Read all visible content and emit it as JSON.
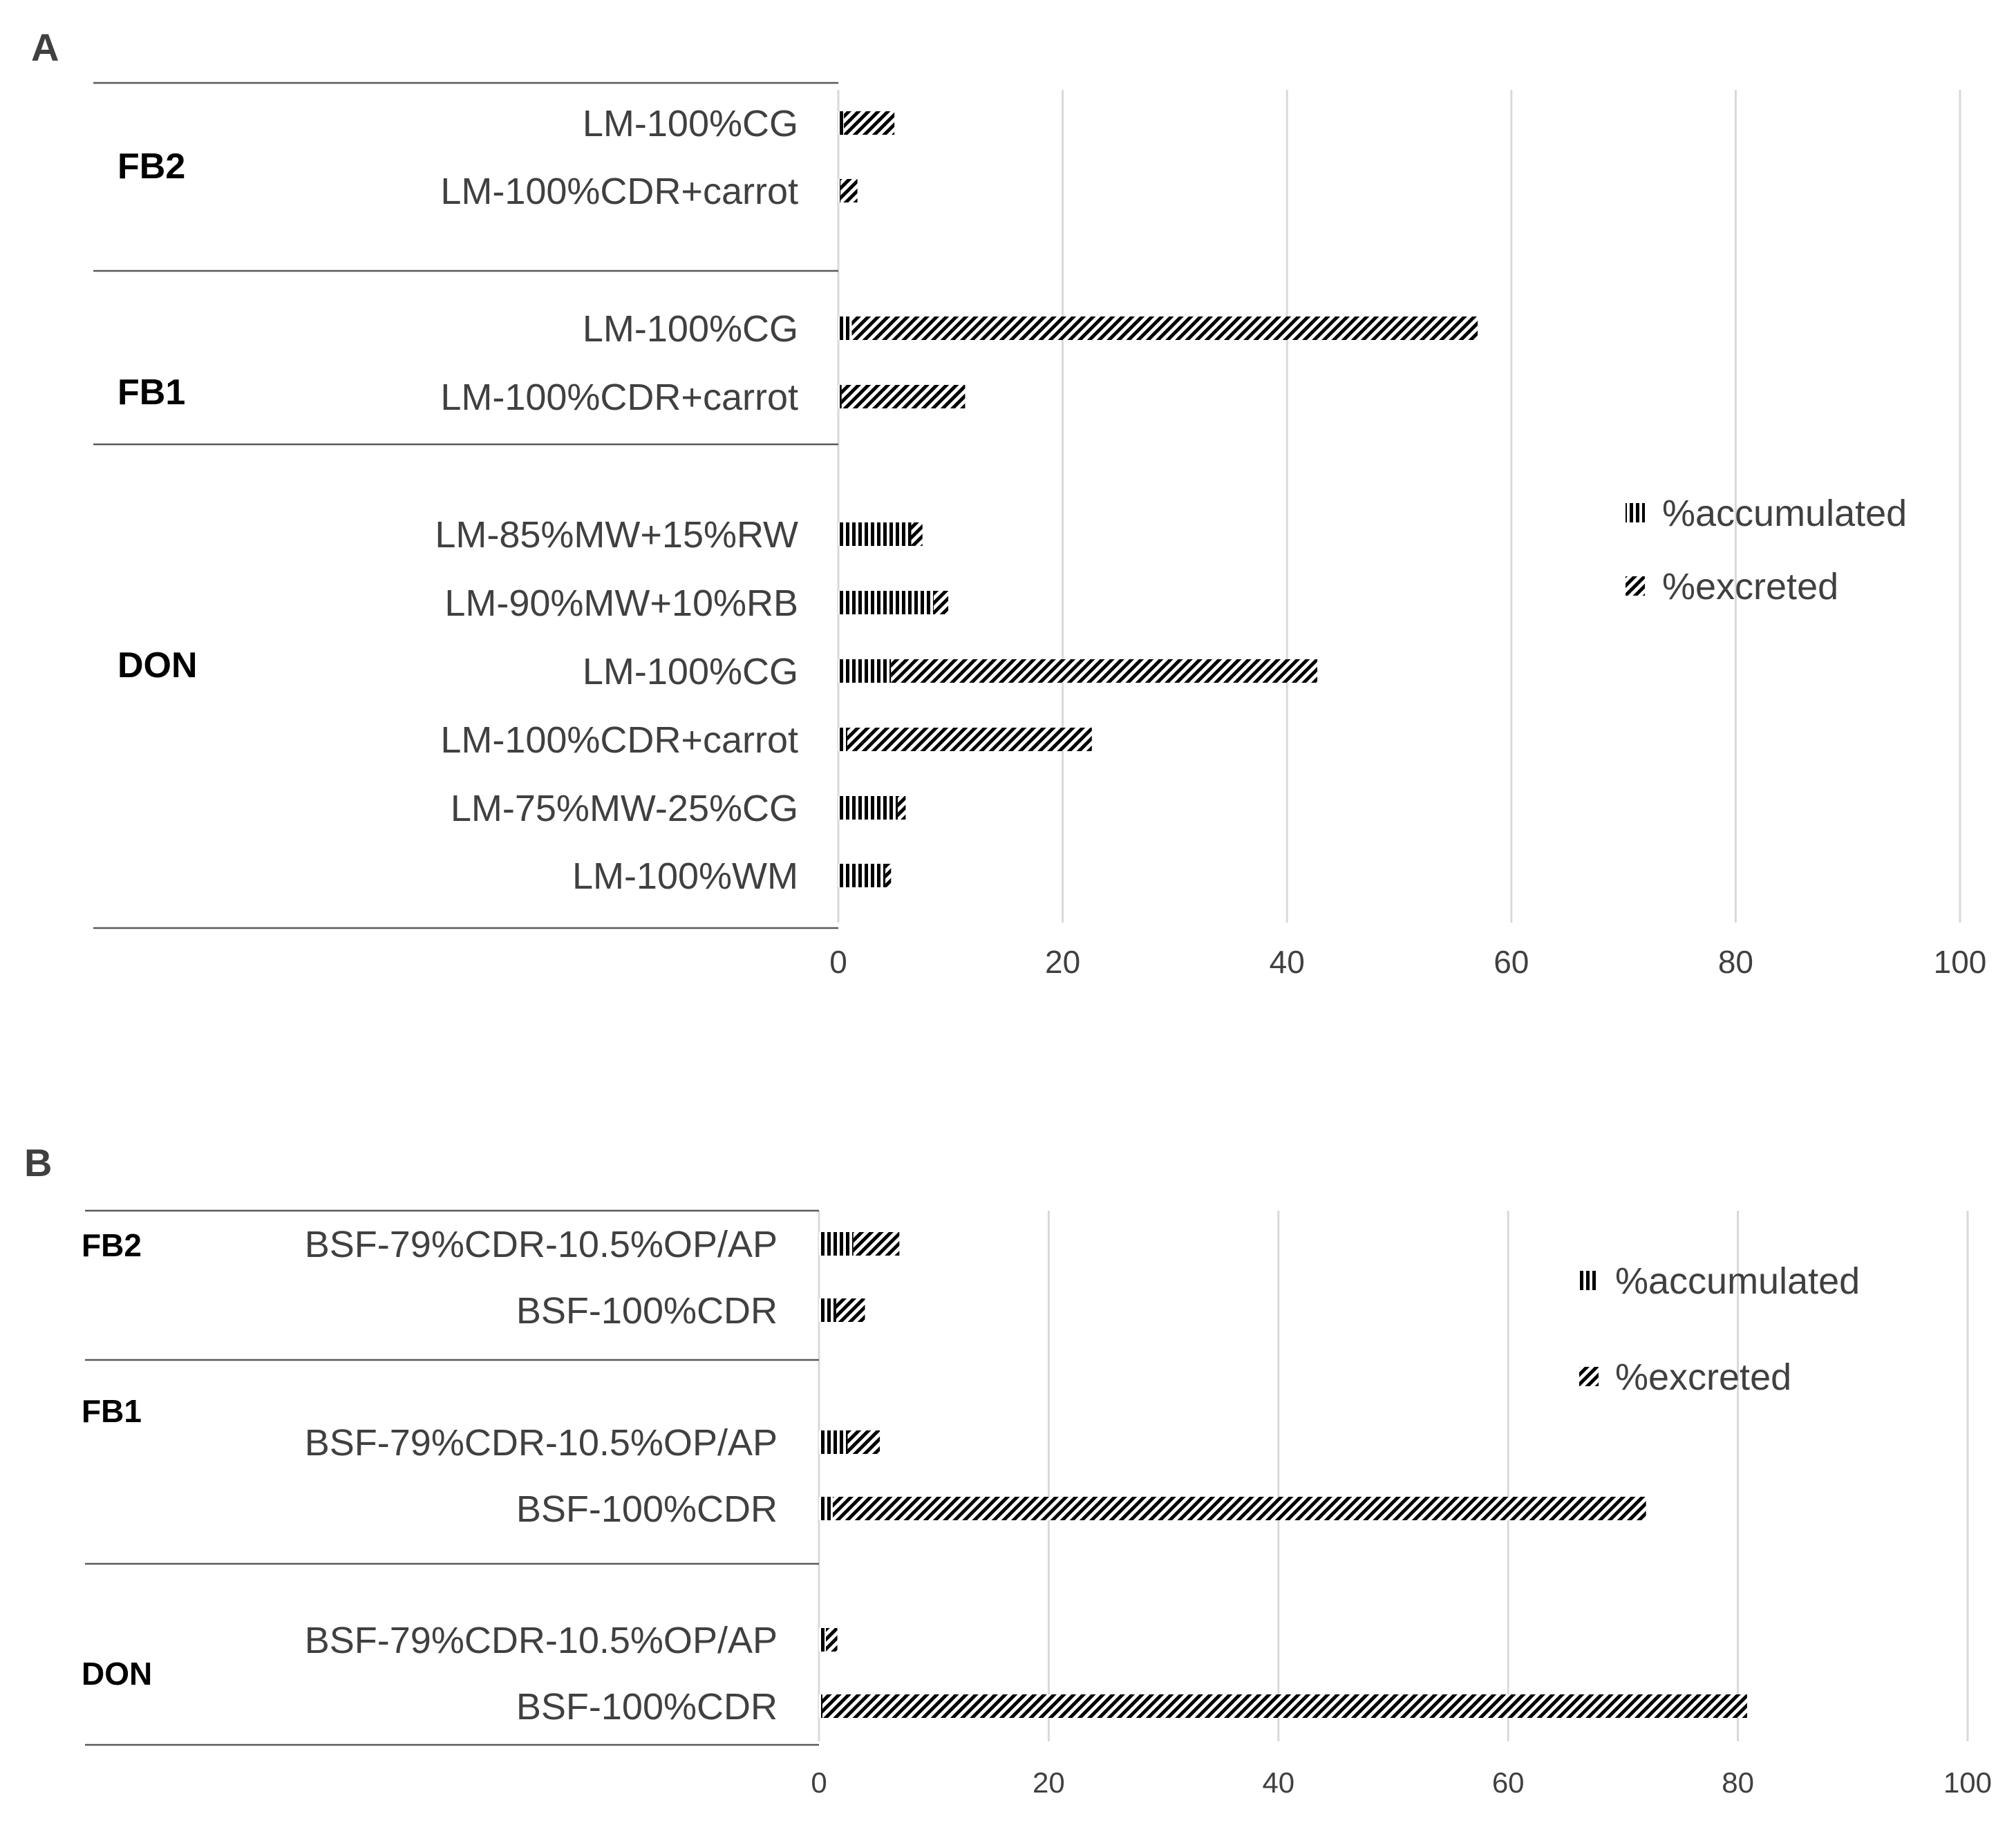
{
  "colors": {
    "text": "#404040",
    "grid": "#d9d9d9",
    "axis": "#595959",
    "hatch": "#000000"
  },
  "legend_items": [
    "%accumulated",
    "%excreted"
  ],
  "chart_data": [
    {
      "panel": "A",
      "type": "bar",
      "orientation": "horizontal",
      "stacked": true,
      "xlim": [
        0,
        100
      ],
      "xticks": [
        "0",
        "20",
        "40",
        "60",
        "80",
        "100"
      ],
      "grid": true,
      "legend_position": "right",
      "series": [
        {
          "name": "%accumulated",
          "pattern": "vertical-lines"
        },
        {
          "name": "%excreted",
          "pattern": "diagonal-lines"
        }
      ],
      "groups": [
        {
          "label": "FB2",
          "bars": [
            {
              "label": "LM-100%CG",
              "values": [
                0.5,
                4.5
              ]
            },
            {
              "label": "LM-100%CDR+carrot",
              "values": [
                0.2,
                1.5
              ]
            }
          ]
        },
        {
          "label": "FB1",
          "bars": [
            {
              "label": "LM-100%CG",
              "values": [
                1.2,
                55.8
              ]
            },
            {
              "label": "LM-100%CDR+carrot",
              "values": [
                0.3,
                11
              ]
            }
          ]
        },
        {
          "label": "DON",
          "bars": [
            {
              "label": "LM-85%MW+15%RW",
              "values": [
                6.5,
                1
              ]
            },
            {
              "label": "LM-90%MW+10%RB",
              "values": [
                8.5,
                1.3
              ]
            },
            {
              "label": "LM-100%CG",
              "values": [
                4.7,
                38
              ]
            },
            {
              "label": "LM-100%CDR+carrot",
              "values": [
                0.8,
                21.8
              ]
            },
            {
              "label": "LM-75%MW-25%CG",
              "values": [
                5.3,
                0.7
              ]
            },
            {
              "label": "LM-100%WM",
              "values": [
                4.2,
                0.5
              ]
            }
          ]
        }
      ]
    },
    {
      "panel": "B",
      "type": "bar",
      "orientation": "horizontal",
      "stacked": true,
      "xlim": [
        0,
        100
      ],
      "xticks": [
        "0",
        "20",
        "40",
        "60",
        "80",
        "100"
      ],
      "grid": true,
      "legend_position": "top-right",
      "series": [
        {
          "name": "%accumulated",
          "pattern": "vertical-lines"
        },
        {
          "name": "%excreted",
          "pattern": "diagonal-lines"
        }
      ],
      "groups": [
        {
          "label": "FB2",
          "bars": [
            {
              "label": "BSF-79%CDR-10.5%OP/AP",
              "values": [
                3,
                4
              ]
            },
            {
              "label": "BSF-100%CDR",
              "values": [
                1.5,
                2.5
              ]
            }
          ]
        },
        {
          "label": "FB1",
          "bars": [
            {
              "label": "BSF-79%CDR-10.5%OP/AP",
              "values": [
                2.5,
                2.8
              ]
            },
            {
              "label": "BSF-100%CDR",
              "values": [
                1.2,
                70.8
              ]
            }
          ]
        },
        {
          "label": "DON",
          "bars": [
            {
              "label": "BSF-79%CDR-10.5%OP/AP",
              "values": [
                0.6,
                1
              ]
            },
            {
              "label": "BSF-100%CDR",
              "values": [
                0.3,
                80.5
              ]
            }
          ]
        }
      ]
    }
  ]
}
